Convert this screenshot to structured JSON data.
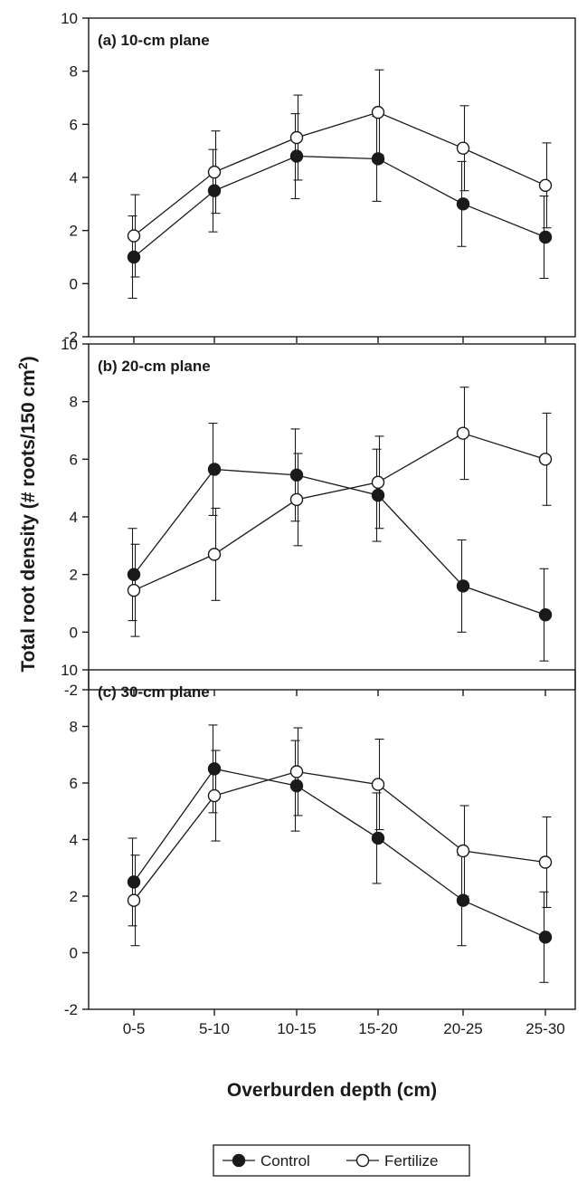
{
  "chart_data": {
    "type": "line",
    "categories": [
      "0-5",
      "5-10",
      "10-15",
      "15-20",
      "20-25",
      "25-30"
    ],
    "xlabel": "Overburden depth (cm)",
    "ylabel_main": "Total root density (# roots/150 cm",
    "ylabel_sup": "2",
    "ylabel_end": ")",
    "ylim": [
      -2,
      10
    ],
    "yticks": [
      "-2",
      "0",
      "2",
      "4",
      "6",
      "8",
      "10"
    ],
    "grid": false,
    "legend": {
      "placement": "bottom-center",
      "entries": [
        "Control",
        "Fertilize"
      ]
    },
    "series_colors": {
      "control_fill": "#1a1a1a",
      "fertilize_fill": "#ffffff",
      "line": "#1a1a1a"
    },
    "panels": [
      {
        "title": "(a) 10-cm plane",
        "series": [
          {
            "name": "Control",
            "values": [
              1.0,
              3.5,
              4.8,
              4.7,
              3.0,
              1.75
            ],
            "err": [
              1.55,
              1.55,
              1.6,
              1.6,
              1.6,
              1.55
            ]
          },
          {
            "name": "Fertilize",
            "values": [
              1.8,
              4.2,
              5.5,
              6.45,
              5.1,
              3.7
            ],
            "err": [
              1.55,
              1.55,
              1.6,
              1.6,
              1.6,
              1.6
            ]
          }
        ]
      },
      {
        "title": "(b) 20-cm plane",
        "series": [
          {
            "name": "Control",
            "values": [
              2.0,
              5.65,
              5.45,
              4.75,
              1.6,
              0.6
            ],
            "err": [
              1.6,
              1.6,
              1.6,
              1.6,
              1.6,
              1.6
            ]
          },
          {
            "name": "Fertilize",
            "values": [
              1.45,
              2.7,
              4.6,
              5.2,
              6.9,
              6.0
            ],
            "err": [
              1.6,
              1.6,
              1.6,
              1.6,
              1.6,
              1.6
            ]
          }
        ]
      },
      {
        "title": "(c) 30-cm plane",
        "series": [
          {
            "name": "Control",
            "values": [
              2.5,
              6.5,
              5.9,
              4.05,
              1.85,
              0.55
            ],
            "err": [
              1.55,
              1.55,
              1.6,
              1.6,
              1.6,
              1.6
            ]
          },
          {
            "name": "Fertilize",
            "values": [
              1.85,
              5.55,
              6.4,
              5.95,
              3.6,
              3.2
            ],
            "err": [
              1.6,
              1.6,
              1.55,
              1.6,
              1.6,
              1.6
            ]
          }
        ]
      }
    ]
  }
}
